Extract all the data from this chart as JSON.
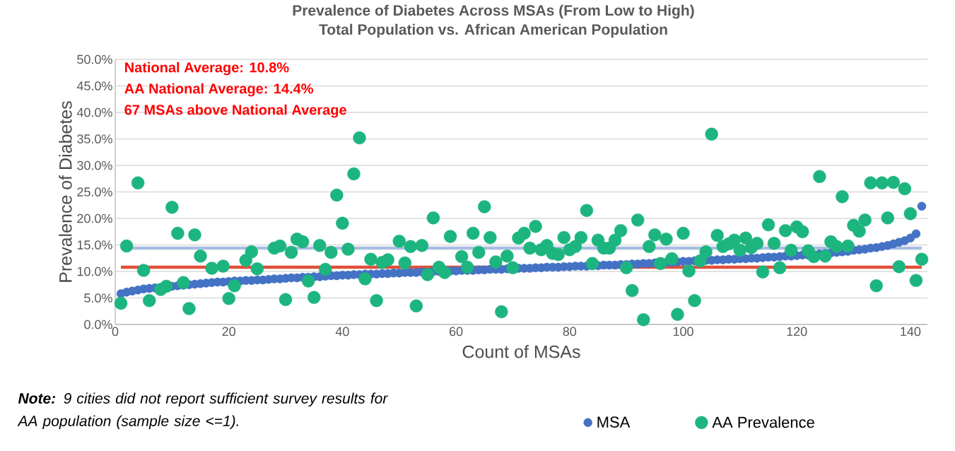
{
  "chart_data": {
    "type": "scatter",
    "title": "Prevalence of Diabetes Across MSAs (From Low to High)",
    "subtitle": "Total Population vs. African American Population",
    "xlabel": "Count of MSAs",
    "ylabel": "Prevalence of Diabetes",
    "annotations": [
      "National Average: 10.8%",
      "AA National Average: 14.4%",
      "67 MSAs above National Average",
      "**Note:** 9 cities did not report sufficient survey results for AA population (sample size <=1)."
    ],
    "xlim": [
      0,
      143
    ],
    "xticks": [
      0,
      20,
      40,
      60,
      80,
      100,
      120,
      140
    ],
    "ylim": [
      0,
      50
    ],
    "yticks": [
      {
        "value": 0,
        "label": "0.0%"
      },
      {
        "value": 5,
        "label": "5.0%"
      },
      {
        "value": 10,
        "label": "10.0%"
      },
      {
        "value": 15,
        "label": "15.0%"
      },
      {
        "value": 20,
        "label": "20.0%"
      },
      {
        "value": 25,
        "label": "25.0%"
      },
      {
        "value": 30,
        "label": "30.0%"
      },
      {
        "value": 35,
        "label": "35.0%"
      },
      {
        "value": 40,
        "label": "40.0%"
      },
      {
        "value": 45,
        "label": "45.0%"
      },
      {
        "value": 50,
        "label": "50.0%"
      }
    ],
    "grid": "y",
    "legend": "bottom",
    "marker": "circle",
    "ref_lines": [
      {
        "axis": "y",
        "value": 10.8,
        "color": "#e04f3a"
      },
      {
        "axis": "y",
        "value": 14.4,
        "color": "#a9bee3"
      }
    ],
    "series": [
      {
        "name": "MSA",
        "color": "#4472c4",
        "x": [
          1,
          2,
          3,
          4,
          5,
          6,
          7,
          8,
          9,
          10,
          11,
          12,
          13,
          14,
          15,
          16,
          17,
          18,
          19,
          20,
          21,
          22,
          23,
          24,
          25,
          26,
          27,
          28,
          29,
          30,
          31,
          32,
          33,
          34,
          35,
          36,
          37,
          38,
          39,
          40,
          41,
          42,
          43,
          44,
          45,
          46,
          47,
          48,
          49,
          50,
          51,
          52,
          53,
          54,
          55,
          56,
          57,
          58,
          59,
          60,
          61,
          62,
          63,
          64,
          65,
          66,
          67,
          68,
          69,
          70,
          71,
          72,
          73,
          74,
          75,
          76,
          77,
          78,
          79,
          80,
          81,
          82,
          83,
          84,
          85,
          86,
          87,
          88,
          89,
          90,
          91,
          92,
          93,
          94,
          95,
          96,
          97,
          98,
          99,
          100,
          101,
          102,
          103,
          104,
          105,
          106,
          107,
          108,
          109,
          110,
          111,
          112,
          113,
          114,
          115,
          116,
          117,
          118,
          119,
          120,
          121,
          122,
          123,
          124,
          125,
          126,
          127,
          128,
          129,
          130,
          131,
          132,
          133,
          134,
          135,
          136,
          137,
          138,
          139,
          140,
          141,
          142
        ],
        "values": [
          5.8,
          6.1,
          6.3,
          6.5,
          6.7,
          6.8,
          6.9,
          null,
          null,
          7.2,
          7.3,
          7.4,
          7.5,
          7.6,
          7.7,
          7.8,
          7.9,
          8.0,
          8.0,
          8.1,
          8.2,
          8.2,
          8.3,
          8.3,
          8.4,
          8.4,
          8.5,
          8.6,
          8.6,
          8.7,
          8.8,
          8.8,
          8.9,
          8.9,
          9.0,
          9.0,
          9.1,
          9.2,
          9.2,
          9.3,
          9.3,
          9.4,
          9.4,
          9.5,
          9.5,
          9.5,
          9.6,
          9.6,
          9.7,
          9.7,
          9.8,
          9.8,
          9.8,
          9.9,
          9.9,
          10.0,
          10.0,
          null,
          10.1,
          10.1,
          10.2,
          10.2,
          10.2,
          10.3,
          10.3,
          10.4,
          10.4,
          10.4,
          10.5,
          null,
          10.6,
          10.6,
          10.6,
          10.7,
          10.7,
          10.8,
          10.8,
          10.8,
          10.9,
          10.9,
          11.0,
          11.0,
          11.0,
          11.1,
          11.1,
          11.2,
          11.2,
          11.2,
          11.3,
          11.3,
          11.4,
          11.4,
          11.5,
          11.5,
          11.6,
          null,
          11.7,
          11.7,
          11.8,
          11.9,
          11.9,
          12.0,
          null,
          12.1,
          12.1,
          12.2,
          12.2,
          12.3,
          12.3,
          12.4,
          12.4,
          12.5,
          12.5,
          12.6,
          12.7,
          12.7,
          12.8,
          12.9,
          12.9,
          13.0,
          13.1,
          13.1,
          null,
          13.3,
          13.4,
          13.5,
          13.6,
          13.7,
          13.8,
          14.0,
          14.1,
          14.2,
          14.4,
          14.5,
          14.7,
          14.9,
          15.2,
          15.5,
          15.8,
          16.3,
          17.1,
          22.3
        ]
      },
      {
        "name": "AA Prevalence",
        "color": "#1db57f",
        "x": [
          1,
          2,
          4,
          5,
          6,
          8,
          9,
          10,
          11,
          12,
          13,
          14,
          15,
          17,
          19,
          20,
          21,
          23,
          24,
          25,
          28,
          29,
          30,
          31,
          32,
          33,
          34,
          35,
          36,
          37,
          38,
          39,
          40,
          41,
          42,
          43,
          44,
          45,
          46,
          47,
          48,
          50,
          51,
          52,
          53,
          54,
          55,
          56,
          57,
          58,
          59,
          61,
          62,
          63,
          64,
          65,
          66,
          67,
          68,
          69,
          70,
          71,
          72,
          73,
          74,
          75,
          76,
          77,
          78,
          79,
          80,
          81,
          82,
          83,
          84,
          85,
          86,
          87,
          88,
          89,
          90,
          91,
          92,
          93,
          94,
          95,
          96,
          97,
          98,
          99,
          100,
          101,
          102,
          103,
          104,
          105,
          106,
          107,
          108,
          109,
          110,
          111,
          112,
          113,
          114,
          115,
          116,
          117,
          118,
          119,
          120,
          121,
          122,
          123,
          124,
          125,
          126,
          127,
          128,
          129,
          130,
          131,
          132,
          133,
          134,
          135,
          136,
          137,
          138,
          139,
          140,
          141,
          142
        ],
        "values": [
          4.0,
          14.8,
          26.7,
          10.2,
          4.5,
          6.6,
          7.2,
          22.1,
          17.2,
          7.9,
          3.0,
          16.9,
          12.9,
          10.6,
          11.0,
          4.9,
          7.3,
          12.1,
          13.7,
          10.5,
          14.4,
          14.8,
          4.7,
          13.6,
          16.1,
          15.6,
          8.2,
          5.1,
          14.9,
          10.4,
          13.6,
          24.4,
          19.1,
          14.2,
          28.4,
          35.2,
          8.6,
          12.3,
          4.5,
          11.7,
          12.2,
          15.7,
          11.6,
          14.7,
          3.5,
          14.9,
          9.4,
          20.1,
          10.8,
          9.8,
          16.6,
          12.8,
          10.8,
          17.2,
          13.6,
          22.2,
          16.4,
          11.8,
          2.4,
          12.9,
          10.7,
          16.3,
          17.2,
          14.4,
          18.5,
          14.1,
          14.9,
          13.4,
          13.2,
          16.4,
          14.1,
          14.7,
          16.4,
          21.5,
          11.5,
          15.9,
          14.4,
          14.4,
          15.9,
          17.7,
          10.7,
          6.4,
          19.7,
          0.9,
          14.7,
          16.9,
          11.5,
          16.1,
          12.4,
          1.9,
          17.2,
          10.1,
          4.5,
          12.0,
          13.7,
          35.9,
          16.8,
          14.7,
          15.2,
          15.9,
          14.0,
          16.3,
          14.5,
          15.3,
          9.9,
          18.8,
          15.3,
          10.7,
          17.7,
          14.0,
          18.4,
          17.5,
          13.9,
          12.8,
          27.9,
          12.9,
          15.6,
          14.7,
          24.1,
          14.8,
          18.7,
          17.6,
          19.7,
          26.7,
          7.3,
          26.7,
          20.1,
          26.8,
          10.9,
          25.6,
          20.9,
          8.3,
          12.3
        ]
      }
    ]
  }
}
